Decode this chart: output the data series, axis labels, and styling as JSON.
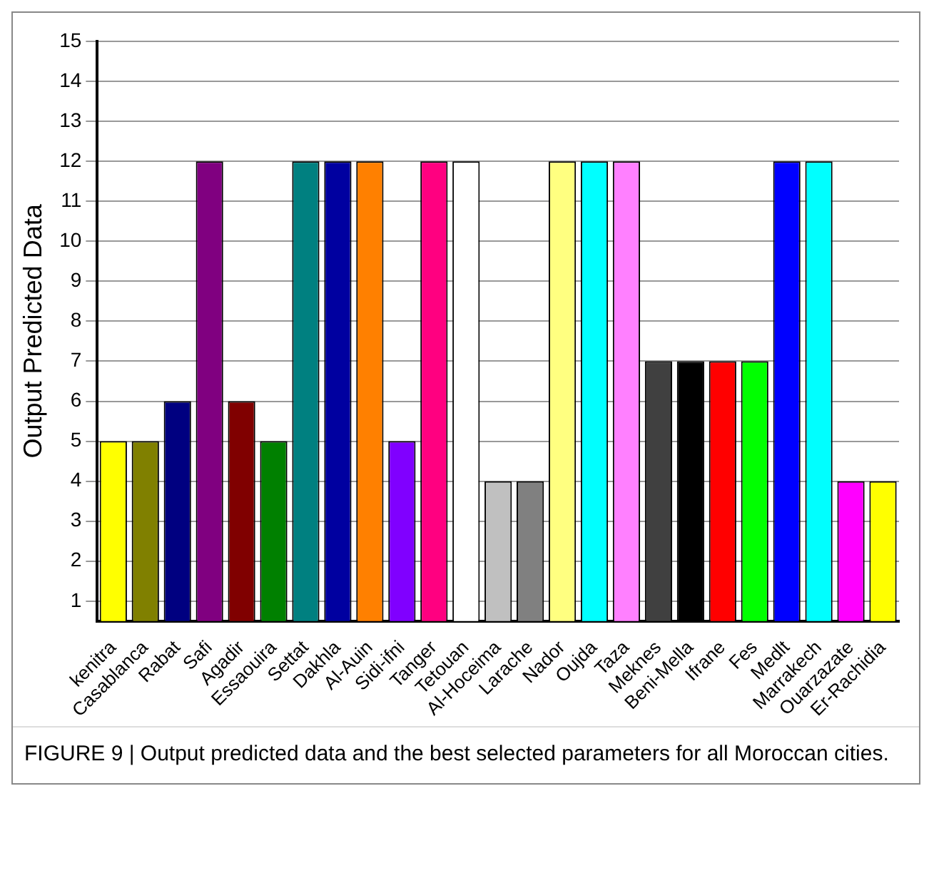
{
  "chart_data": {
    "type": "bar",
    "ylabel": "Output Predicted Data",
    "categories": [
      "kenitra",
      "Casablanca",
      "Rabat",
      "Safi",
      "Agadir",
      "Essaouira",
      "Settat",
      "Dakhla",
      "Al-Auin",
      "Sidi-ifni",
      "Tanger",
      "Tetouan",
      "Al-Hoceima",
      "Larache",
      "Nador",
      "Oujda",
      "Taza",
      "Meknes",
      "Beni-Mella",
      "Ifrane",
      "Fes",
      "Medlt",
      "Marrakech",
      "Ouarzazate",
      "Er-Rachidia"
    ],
    "values": [
      5,
      5,
      6,
      12,
      6,
      5,
      12,
      12,
      12,
      5,
      12,
      12,
      4,
      4,
      12,
      12,
      12,
      7,
      7,
      7,
      7,
      12,
      12,
      4,
      4
    ],
    "colors": [
      "#ffff00",
      "#808000",
      "#000080",
      "#800080",
      "#800000",
      "#008000",
      "#008080",
      "#0000a0",
      "#ff8000",
      "#8000ff",
      "#ff0080",
      "#ffffff",
      "#c0c0c0",
      "#808080",
      "#ffff80",
      "#00ffff",
      "#ff80ff",
      "#404040",
      "#000000",
      "#ff0000",
      "#00ff00",
      "#0000ff",
      "#00ffff",
      "#ff00ff",
      "#ffff00"
    ],
    "ylim": [
      0.5,
      15
    ],
    "yticks": [
      1,
      2,
      3,
      4,
      5,
      6,
      7,
      8,
      9,
      10,
      11,
      12,
      13,
      14,
      15
    ],
    "grid": "y",
    "annotations": [
      "FIGURE 9 | Output predicted data and the best selected parameters for all Moroccan cities."
    ]
  }
}
